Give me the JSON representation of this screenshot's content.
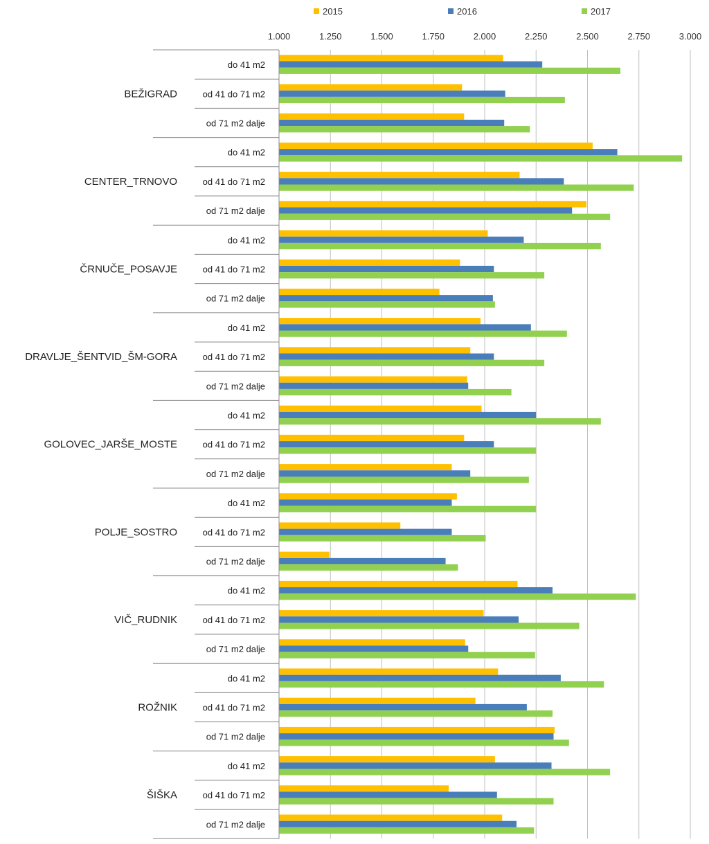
{
  "chart_data": {
    "type": "bar",
    "orientation": "horizontal",
    "title": "",
    "xlabel": "",
    "ylabel": "",
    "xlim": [
      1000,
      3000
    ],
    "x_ticks": [
      "1.000",
      "1.250",
      "1.500",
      "1.750",
      "2.000",
      "2.250",
      "2.500",
      "2.750",
      "3.000"
    ],
    "x_tick_values": [
      1000,
      1250,
      1500,
      1750,
      2000,
      2250,
      2500,
      2750,
      3000
    ],
    "x_axis_position": "top",
    "grid": true,
    "legend_position": "top",
    "series_colors": [
      "#ffc000",
      "#4a7ebb",
      "#92d050"
    ],
    "series_names": [
      "2015",
      "2016",
      "2017"
    ],
    "subcategories": [
      "do 41 m2",
      "od 41 do 71 m2",
      "od 71 m2 dalje"
    ],
    "groups": [
      {
        "name": "BEŽIGRAD",
        "values": [
          [
            2090,
            2280,
            2660
          ],
          [
            1890,
            2100,
            2390
          ],
          [
            1900,
            2095,
            2220
          ]
        ]
      },
      {
        "name": "CENTER_TRNOVO",
        "values": [
          [
            2525,
            2645,
            2960
          ],
          [
            2170,
            2385,
            2725
          ],
          [
            2495,
            2425,
            2610
          ]
        ]
      },
      {
        "name": "ČRNUČE_POSAVJE",
        "values": [
          [
            2015,
            2190,
            2565
          ],
          [
            1880,
            2045,
            2290
          ],
          [
            1780,
            2040,
            2050
          ]
        ]
      },
      {
        "name": "DRAVLJE_ŠENTVID_ŠM-GORA",
        "values": [
          [
            1980,
            2225,
            2400
          ],
          [
            1930,
            2045,
            2290
          ],
          [
            1915,
            1920,
            2130
          ]
        ]
      },
      {
        "name": "GOLOVEC_JARŠE_MOSTE",
        "values": [
          [
            1985,
            2250,
            2565
          ],
          [
            1900,
            2045,
            2250
          ],
          [
            1840,
            1930,
            2215
          ]
        ]
      },
      {
        "name": "POLJE_SOSTRO",
        "values": [
          [
            1865,
            1840,
            2250
          ],
          [
            1590,
            1840,
            2005
          ],
          [
            1245,
            1810,
            1870
          ]
        ]
      },
      {
        "name": "VIČ_RUDNIK",
        "values": [
          [
            2160,
            2330,
            2735
          ],
          [
            1995,
            2165,
            2460
          ],
          [
            1905,
            1920,
            2245
          ]
        ]
      },
      {
        "name": "ROŽNIK",
        "values": [
          [
            2065,
            2370,
            2580
          ],
          [
            1955,
            2205,
            2330
          ],
          [
            2340,
            2335,
            2410
          ]
        ]
      },
      {
        "name": "ŠIŠKA",
        "values": [
          [
            2050,
            2325,
            2610
          ],
          [
            1825,
            2060,
            2335
          ],
          [
            2085,
            2155,
            2240
          ]
        ]
      }
    ]
  }
}
